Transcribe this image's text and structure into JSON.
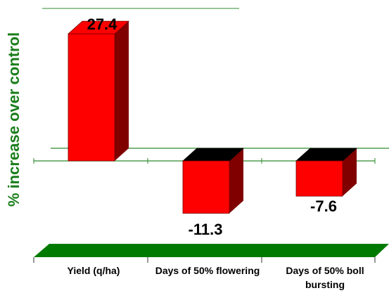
{
  "chart_data": {
    "type": "bar",
    "categories": [
      "Yield (q/ha)",
      "Days of 50% flowering",
      "Days of 50% boll bursting"
    ],
    "values": [
      27.4,
      -11.3,
      -7.6
    ],
    "data_labels": [
      "27.4",
      "-11.3",
      "-7.6"
    ],
    "title": "",
    "xlabel": "",
    "ylabel": "% increase over control",
    "bar_style": "3d",
    "grid": false,
    "legend": "none",
    "colors": {
      "bar_front": "#ff0000",
      "bar_side": "#800000",
      "bar_top_positive": "#ff0000",
      "bar_top_negative": "#000000",
      "axis_lines": "#2e8b2e",
      "floor": "#007a00",
      "ylabel": "#1a7d1a"
    }
  }
}
